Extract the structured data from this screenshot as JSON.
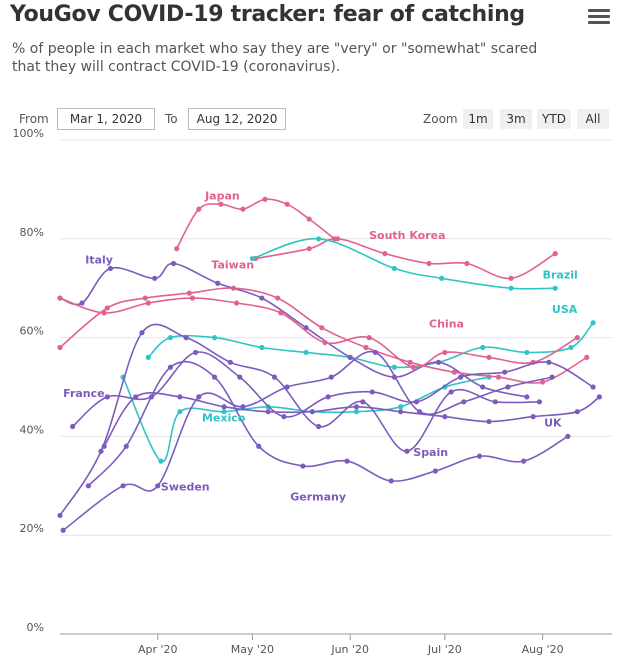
{
  "header": {
    "title": "YouGov COVID-19 tracker: fear of catching",
    "subtitle": "% of people in each market who say they are \"very\" or \"somewhat\" scared that they will contract COVID-19 (coronavirus)."
  },
  "range_selector": {
    "from_label": "From",
    "from_value": "Mar 1, 2020",
    "to_label": "To",
    "to_value": "Aug 12, 2020",
    "zoom_label": "Zoom",
    "zoom_buttons": [
      "1m",
      "3m",
      "YTD",
      "All"
    ]
  },
  "colors": {
    "purple": "#7d5bbe",
    "pink": "#e2618f",
    "teal": "#30c4c6",
    "grid": "#e4e4e4",
    "axis": "#999999"
  },
  "chart_data": {
    "type": "line",
    "xlim": [
      "2020-03-01",
      "2020-08-12"
    ],
    "ylim": [
      0,
      100
    ],
    "yticks": [
      0,
      20,
      40,
      60,
      80,
      100
    ],
    "ytick_labels": [
      "0%",
      "20%",
      "40%",
      "60%",
      "80%",
      "100%"
    ],
    "xticks": [
      {
        "date": "2020-04-01",
        "label": "Apr '20"
      },
      {
        "date": "2020-05-01",
        "label": "May '20"
      },
      {
        "date": "2020-06-01",
        "label": "Jun '20"
      },
      {
        "date": "2020-07-01",
        "label": "Jul '20"
      },
      {
        "date": "2020-08-01",
        "label": "Aug '20"
      }
    ],
    "grid": true,
    "legend": "inline labels",
    "series": [
      {
        "name": "Japan",
        "color": "pink",
        "label_at": [
          "2020-04-16",
          88
        ],
        "points": [
          [
            "2020-04-07",
            78
          ],
          [
            "2020-04-14",
            86
          ],
          [
            "2020-04-21",
            87
          ],
          [
            "2020-04-28",
            86
          ],
          [
            "2020-05-05",
            88
          ],
          [
            "2020-05-12",
            87
          ],
          [
            "2020-05-19",
            84
          ],
          [
            "2020-05-27",
            80
          ]
        ]
      },
      {
        "name": "South Korea",
        "color": "pink",
        "label_at": [
          "2020-06-07",
          80
        ],
        "points": [
          [
            "2020-05-02",
            76
          ],
          [
            "2020-05-19",
            78
          ],
          [
            "2020-05-28",
            80
          ],
          [
            "2020-06-12",
            77
          ],
          [
            "2020-06-26",
            75
          ],
          [
            "2020-07-08",
            75
          ],
          [
            "2020-07-22",
            72
          ],
          [
            "2020-08-05",
            77
          ]
        ]
      },
      {
        "name": "Brazil",
        "color": "teal",
        "label_at": [
          "2020-08-01",
          72
        ],
        "points": [
          [
            "2020-05-01",
            76
          ],
          [
            "2020-05-22",
            80
          ],
          [
            "2020-06-15",
            74
          ],
          [
            "2020-06-30",
            72
          ],
          [
            "2020-07-22",
            70
          ],
          [
            "2020-08-05",
            70
          ]
        ]
      },
      {
        "name": "USA",
        "color": "teal",
        "label_at": [
          "2020-08-12",
          65
        ],
        "points": [
          [
            "2020-03-29",
            56
          ],
          [
            "2020-04-05",
            60
          ],
          [
            "2020-04-19",
            60
          ],
          [
            "2020-05-04",
            58
          ],
          [
            "2020-05-18",
            57
          ],
          [
            "2020-06-01",
            56
          ],
          [
            "2020-06-15",
            54
          ],
          [
            "2020-06-29",
            55
          ],
          [
            "2020-07-13",
            58
          ],
          [
            "2020-07-27",
            57
          ],
          [
            "2020-08-10",
            58
          ],
          [
            "2020-08-17",
            63
          ]
        ]
      },
      {
        "name": "Mexico",
        "color": "teal",
        "label_at": [
          "2020-04-15",
          43
        ],
        "points": [
          [
            "2020-03-21",
            52
          ],
          [
            "2020-04-02",
            35
          ],
          [
            "2020-04-08",
            45
          ],
          [
            "2020-04-22",
            45
          ],
          [
            "2020-05-06",
            46
          ],
          [
            "2020-05-20",
            45
          ],
          [
            "2020-06-03",
            45
          ],
          [
            "2020-06-17",
            46
          ],
          [
            "2020-07-01",
            50
          ],
          [
            "2020-07-15",
            52
          ]
        ]
      },
      {
        "name": "Italy",
        "color": "purple",
        "label_at": [
          "2020-03-09",
          75
        ],
        "points": [
          [
            "2020-03-01",
            68
          ],
          [
            "2020-03-08",
            67
          ],
          [
            "2020-03-17",
            74
          ],
          [
            "2020-03-31",
            72
          ],
          [
            "2020-04-06",
            75
          ],
          [
            "2020-04-20",
            71
          ],
          [
            "2020-05-04",
            68
          ],
          [
            "2020-05-18",
            62
          ],
          [
            "2020-06-01",
            56
          ],
          [
            "2020-06-15",
            52
          ],
          [
            "2020-06-29",
            55
          ],
          [
            "2020-07-13",
            50
          ],
          [
            "2020-07-27",
            48
          ]
        ]
      },
      {
        "name": "Taiwan",
        "color": "pink",
        "label_at": [
          "2020-04-18",
          74
        ],
        "points": [
          [
            "2020-03-01",
            58
          ],
          [
            "2020-03-16",
            66
          ],
          [
            "2020-03-28",
            68
          ],
          [
            "2020-04-11",
            69
          ],
          [
            "2020-04-25",
            70
          ],
          [
            "2020-05-09",
            68
          ],
          [
            "2020-05-23",
            62
          ],
          [
            "2020-06-06",
            58
          ],
          [
            "2020-06-20",
            55
          ],
          [
            "2020-07-04",
            53
          ],
          [
            "2020-07-18",
            52
          ],
          [
            "2020-08-01",
            51
          ],
          [
            "2020-08-15",
            56
          ]
        ]
      },
      {
        "name": "China",
        "color": "pink",
        "label_at": [
          "2020-06-26",
          62
        ],
        "points": [
          [
            "2020-03-01",
            68
          ],
          [
            "2020-03-15",
            65
          ],
          [
            "2020-03-29",
            67
          ],
          [
            "2020-04-12",
            68
          ],
          [
            "2020-04-26",
            67
          ],
          [
            "2020-05-10",
            65
          ],
          [
            "2020-05-24",
            59
          ],
          [
            "2020-06-07",
            60
          ],
          [
            "2020-06-21",
            54
          ],
          [
            "2020-07-01",
            57
          ],
          [
            "2020-07-15",
            56
          ],
          [
            "2020-07-29",
            55
          ],
          [
            "2020-08-12",
            60
          ]
        ]
      },
      {
        "name": "France",
        "color": "purple",
        "label_at": [
          "2020-03-02",
          48
        ],
        "points": [
          [
            "2020-03-05",
            42
          ],
          [
            "2020-03-16",
            48
          ],
          [
            "2020-03-30",
            48
          ],
          [
            "2020-04-13",
            57
          ],
          [
            "2020-04-27",
            52
          ],
          [
            "2020-05-11",
            44
          ],
          [
            "2020-05-25",
            48
          ],
          [
            "2020-06-08",
            49
          ],
          [
            "2020-06-22",
            47
          ],
          [
            "2020-07-06",
            52
          ],
          [
            "2020-07-20",
            53
          ],
          [
            "2020-08-03",
            55
          ],
          [
            "2020-08-17",
            50
          ]
        ]
      },
      {
        "name": "UK",
        "color": "purple",
        "label_at": [
          "2020-08-07",
          42
        ],
        "points": [
          [
            "2020-03-15",
            38
          ],
          [
            "2020-03-25",
            48
          ],
          [
            "2020-04-08",
            48
          ],
          [
            "2020-04-22",
            46
          ],
          [
            "2020-05-06",
            45
          ],
          [
            "2020-05-20",
            45
          ],
          [
            "2020-06-03",
            46
          ],
          [
            "2020-06-17",
            45
          ],
          [
            "2020-07-01",
            44
          ],
          [
            "2020-07-15",
            43
          ],
          [
            "2020-07-29",
            44
          ],
          [
            "2020-08-12",
            45
          ],
          [
            "2020-08-19",
            48
          ]
        ]
      },
      {
        "name": "Spain",
        "color": "purple",
        "label_at": [
          "2020-06-21",
          36
        ],
        "points": [
          [
            "2020-03-01",
            24
          ],
          [
            "2020-03-14",
            37
          ],
          [
            "2020-03-27",
            61
          ],
          [
            "2020-04-10",
            60
          ],
          [
            "2020-04-24",
            55
          ],
          [
            "2020-05-08",
            52
          ],
          [
            "2020-05-22",
            42
          ],
          [
            "2020-06-05",
            47
          ],
          [
            "2020-06-19",
            37
          ],
          [
            "2020-07-03",
            49
          ],
          [
            "2020-07-17",
            47
          ],
          [
            "2020-07-31",
            47
          ]
        ]
      },
      {
        "name": "Sweden",
        "color": "purple",
        "label_at": [
          "2020-04-02",
          29
        ],
        "points": [
          [
            "2020-03-02",
            21
          ],
          [
            "2020-03-21",
            30
          ],
          [
            "2020-04-01",
            30
          ],
          [
            "2020-04-14",
            48
          ],
          [
            "2020-04-28",
            46
          ],
          [
            "2020-05-12",
            50
          ],
          [
            "2020-05-26",
            52
          ],
          [
            "2020-06-09",
            57
          ],
          [
            "2020-06-23",
            45
          ],
          [
            "2020-07-07",
            47
          ],
          [
            "2020-07-21",
            50
          ],
          [
            "2020-08-04",
            52
          ]
        ]
      },
      {
        "name": "Germany",
        "color": "purple",
        "label_at": [
          "2020-05-13",
          27
        ],
        "points": [
          [
            "2020-03-10",
            30
          ],
          [
            "2020-03-22",
            38
          ],
          [
            "2020-04-05",
            54
          ],
          [
            "2020-04-19",
            52
          ],
          [
            "2020-05-03",
            38
          ],
          [
            "2020-05-17",
            34
          ],
          [
            "2020-05-31",
            35
          ],
          [
            "2020-06-14",
            31
          ],
          [
            "2020-06-28",
            33
          ],
          [
            "2020-07-12",
            36
          ],
          [
            "2020-07-26",
            35
          ],
          [
            "2020-08-09",
            40
          ]
        ]
      }
    ]
  }
}
